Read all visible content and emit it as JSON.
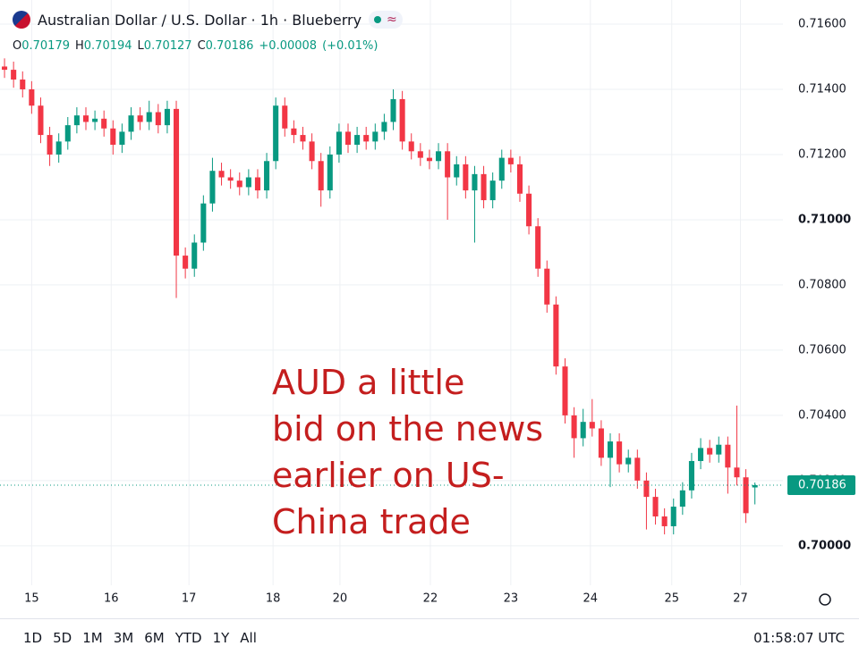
{
  "chart_data": {
    "type": "candlestick",
    "title": "Australian Dollar / U.S. Dollar · 1h · Blueberry",
    "ohlc_labels": [
      "O",
      "H",
      "L",
      "C"
    ],
    "change": "+0.00008",
    "change_pct": "(+0.01%)",
    "annotation": [
      "AUD a little",
      "bid on the news",
      "earlier on US-",
      "China trade"
    ],
    "up_color": "#089981",
    "down_color": "#f23645",
    "annotation_color": "#c41e1e",
    "grid": true,
    "xlim": [
      -0.5,
      86.1
    ],
    "xticks": [
      {
        "value": 3.0,
        "label": "15"
      },
      {
        "value": 11.8,
        "label": "16"
      },
      {
        "value": 20.4,
        "label": "17"
      },
      {
        "value": 29.7,
        "label": "18"
      },
      {
        "value": 37.1,
        "label": "20"
      },
      {
        "value": 47.1,
        "label": "22"
      },
      {
        "value": 56.0,
        "label": "23"
      },
      {
        "value": 64.8,
        "label": "24"
      },
      {
        "value": 73.8,
        "label": "25"
      },
      {
        "value": 81.4,
        "label": "27"
      }
    ],
    "ylim": [
      0.69879,
      0.71674
    ],
    "yticks": [
      {
        "value": 0.7,
        "label": "0.70000"
      },
      {
        "value": 0.702,
        "label": "0.70200"
      },
      {
        "value": 0.704,
        "label": "0.70400"
      },
      {
        "value": 0.706,
        "label": "0.70600"
      },
      {
        "value": 0.708,
        "label": "0.70800"
      },
      {
        "value": 0.71,
        "label": "0.71000"
      },
      {
        "value": 0.712,
        "label": "0.71200"
      },
      {
        "value": 0.714,
        "label": "0.71400"
      },
      {
        "value": 0.716,
        "label": "0.71600"
      }
    ],
    "open": [
      0.7147,
      0.7146,
      0.7143,
      0.714,
      0.7135,
      0.7126,
      0.712,
      0.7124,
      0.7129,
      0.7132,
      0.713,
      0.7131,
      0.7128,
      0.7123,
      0.7127,
      0.7132,
      0.713,
      0.7133,
      0.7129,
      0.7134,
      0.7089,
      0.7085,
      0.7093,
      0.7105,
      0.7115,
      0.7113,
      0.7112,
      0.711,
      0.7113,
      0.7109,
      0.7118,
      0.7135,
      0.7128,
      0.7126,
      0.7124,
      0.7118,
      0.7109,
      0.712,
      0.7127,
      0.7123,
      0.7126,
      0.7124,
      0.7127,
      0.713,
      0.7137,
      0.7124,
      0.7121,
      0.7119,
      0.7118,
      0.7121,
      0.7113,
      0.7117,
      0.7109,
      0.7114,
      0.7106,
      0.7112,
      0.7119,
      0.7117,
      0.7108,
      0.7098,
      0.7085,
      0.7074,
      0.7055,
      0.704,
      0.7033,
      0.7038,
      0.7036,
      0.7027,
      0.7032,
      0.7025,
      0.7027,
      0.702,
      0.7015,
      0.7009,
      0.7006,
      0.7012,
      0.7017,
      0.7026,
      0.703,
      0.7028,
      0.7031,
      0.7024,
      0.7021,
      0.70179
    ],
    "high": [
      0.71495,
      0.71485,
      0.71455,
      0.71425,
      0.71375,
      0.71285,
      0.71265,
      0.71315,
      0.71345,
      0.71345,
      0.71335,
      0.71335,
      0.71305,
      0.71295,
      0.71345,
      0.71345,
      0.71365,
      0.71355,
      0.71365,
      0.71365,
      0.70915,
      0.70955,
      0.71075,
      0.7119,
      0.71175,
      0.71155,
      0.71145,
      0.71155,
      0.71155,
      0.71205,
      0.71375,
      0.71375,
      0.71305,
      0.71285,
      0.71265,
      0.71205,
      0.71225,
      0.71295,
      0.71295,
      0.71285,
      0.71285,
      0.71295,
      0.71325,
      0.714,
      0.71395,
      0.71265,
      0.71235,
      0.71215,
      0.71235,
      0.71235,
      0.71195,
      0.71195,
      0.71165,
      0.71165,
      0.71145,
      0.71215,
      0.71215,
      0.71195,
      0.71105,
      0.71005,
      0.70875,
      0.70765,
      0.70575,
      0.70425,
      0.7042,
      0.7045,
      0.70385,
      0.70345,
      0.70345,
      0.70295,
      0.70295,
      0.70225,
      0.70175,
      0.70115,
      0.70145,
      0.70195,
      0.70285,
      0.7033,
      0.70325,
      0.70335,
      0.70335,
      0.7043,
      0.70235,
      0.70194
    ],
    "low": [
      0.71435,
      0.71405,
      0.71375,
      0.71325,
      0.71235,
      0.71165,
      0.71175,
      0.71215,
      0.71265,
      0.71275,
      0.71275,
      0.71255,
      0.712,
      0.71205,
      0.71245,
      0.71275,
      0.71275,
      0.71265,
      0.71265,
      0.7076,
      0.7082,
      0.70825,
      0.70905,
      0.71025,
      0.71105,
      0.71095,
      0.71075,
      0.71075,
      0.71065,
      0.71065,
      0.71155,
      0.71255,
      0.71235,
      0.71215,
      0.71155,
      0.7104,
      0.71065,
      0.71175,
      0.71205,
      0.71205,
      0.71215,
      0.71215,
      0.71245,
      0.71275,
      0.71215,
      0.71185,
      0.71165,
      0.71155,
      0.71155,
      0.71,
      0.71105,
      0.71065,
      0.7093,
      0.71035,
      0.71035,
      0.71095,
      0.71145,
      0.71055,
      0.70955,
      0.70825,
      0.70715,
      0.70525,
      0.70375,
      0.7027,
      0.70305,
      0.70335,
      0.70245,
      0.7018,
      0.70225,
      0.70225,
      0.70175,
      0.7005,
      0.70065,
      0.70035,
      0.70035,
      0.70095,
      0.70145,
      0.70235,
      0.70255,
      0.70255,
      0.7016,
      0.70185,
      0.7007,
      0.70127
    ],
    "close": [
      0.7146,
      0.7143,
      0.714,
      0.7135,
      0.7126,
      0.712,
      0.7124,
      0.7129,
      0.7132,
      0.713,
      0.7131,
      0.7128,
      0.7123,
      0.7127,
      0.7132,
      0.713,
      0.7133,
      0.7129,
      0.7134,
      0.7089,
      0.7085,
      0.7093,
      0.7105,
      0.7115,
      0.7113,
      0.7112,
      0.711,
      0.7113,
      0.7109,
      0.7118,
      0.7135,
      0.7128,
      0.7126,
      0.7124,
      0.7118,
      0.7109,
      0.712,
      0.7127,
      0.7123,
      0.7126,
      0.7124,
      0.7127,
      0.713,
      0.7137,
      0.7124,
      0.7121,
      0.7119,
      0.7118,
      0.7121,
      0.7113,
      0.7117,
      0.7109,
      0.7114,
      0.7106,
      0.7112,
      0.7119,
      0.7117,
      0.7108,
      0.7098,
      0.7085,
      0.7074,
      0.7055,
      0.704,
      0.7033,
      0.7038,
      0.7036,
      0.7027,
      0.7032,
      0.7025,
      0.7027,
      0.702,
      0.7015,
      0.7009,
      0.7006,
      0.7012,
      0.7017,
      0.7026,
      0.703,
      0.7028,
      0.7031,
      0.7024,
      0.7021,
      0.701,
      0.70186
    ]
  },
  "toolbar": {
    "ranges": [
      "1D",
      "5D",
      "1M",
      "3M",
      "6M",
      "YTD",
      "1Y",
      "All"
    ],
    "clock": "01:58:07 UTC"
  }
}
